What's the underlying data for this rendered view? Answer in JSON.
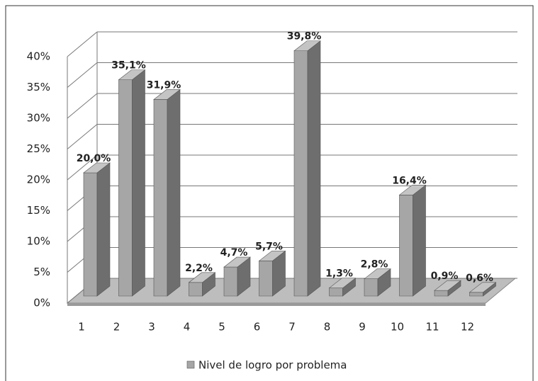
{
  "chart_data": {
    "type": "bar3d",
    "categories": [
      "1",
      "2",
      "3",
      "4",
      "5",
      "6",
      "7",
      "8",
      "9",
      "10",
      "11",
      "12"
    ],
    "series": [
      {
        "name": "Nivel de logro por problema",
        "color": "#a6a6a6",
        "values": [
          20.0,
          35.1,
          31.9,
          2.2,
          4.7,
          5.7,
          39.8,
          1.3,
          2.8,
          16.4,
          0.9,
          0.6
        ],
        "value_labels": [
          "20,0%",
          "35,1%",
          "31,9%",
          "2,2%",
          "4,7%",
          "5,7%",
          "39,8%",
          "1,3%",
          "2,8%",
          "16,4%",
          "0,9%",
          "0,6%"
        ]
      }
    ],
    "ylim": [
      0,
      40
    ],
    "yticks": [
      {
        "value": 0,
        "label": "0%"
      },
      {
        "value": 5,
        "label": "5%"
      },
      {
        "value": 10,
        "label": "10%"
      },
      {
        "value": 15,
        "label": "15%"
      },
      {
        "value": 20,
        "label": "20%"
      },
      {
        "value": 25,
        "label": "25%"
      },
      {
        "value": 30,
        "label": "30%"
      },
      {
        "value": 35,
        "label": "35%"
      },
      {
        "value": 40,
        "label": "40%"
      }
    ],
    "grid": true,
    "legend": "bottom"
  }
}
